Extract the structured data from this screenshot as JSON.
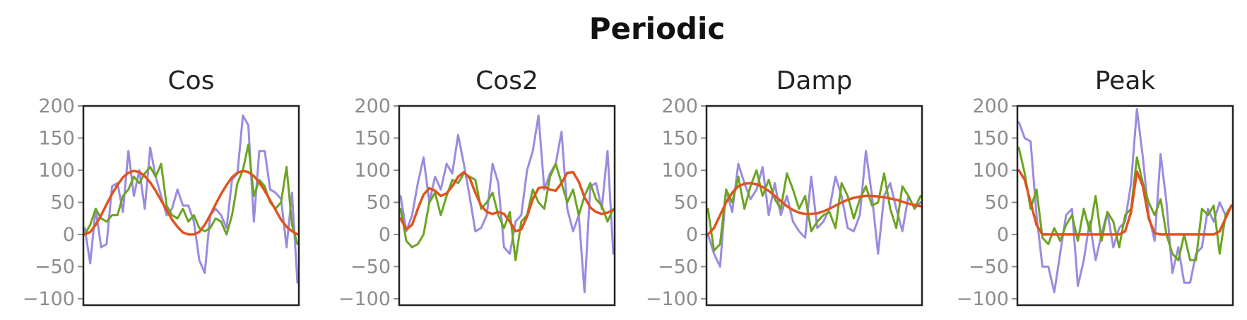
{
  "title": "Periodic",
  "colors": {
    "noisy_a": "#9b8ae0",
    "noisy_b": "#6aa51f",
    "fit": "#e0531f",
    "frame": "#222222",
    "tick": "#8c8c8c"
  },
  "chart_data": [
    {
      "type": "line",
      "title": "Cos",
      "xlabel": "",
      "ylabel": "",
      "ylim": [
        -110,
        200
      ],
      "yticks": [
        200,
        150,
        100,
        50,
        0,
        -50,
        -100
      ],
      "grid": false,
      "series": [
        {
          "color": "#9b8ae0",
          "values": [
            10,
            -45,
            40,
            -20,
            -15,
            75,
            80,
            35,
            130,
            60,
            100,
            40,
            135,
            90,
            60,
            30,
            40,
            70,
            45,
            45,
            20,
            -40,
            -60,
            30,
            40,
            30,
            10,
            85,
            95,
            185,
            170,
            20,
            130,
            130,
            70,
            65,
            55,
            -20,
            65,
            -75
          ]
        },
        {
          "color": "#6aa51f",
          "values": [
            0,
            15,
            40,
            25,
            20,
            30,
            30,
            60,
            70,
            90,
            80,
            95,
            105,
            90,
            110,
            45,
            30,
            25,
            40,
            20,
            30,
            10,
            5,
            10,
            25,
            20,
            0,
            30,
            80,
            100,
            140,
            60,
            85,
            75,
            50,
            40,
            50,
            105,
            15,
            -15
          ]
        },
        {
          "color": "#e0531f",
          "values": [
            0,
            4,
            15,
            30,
            47,
            63,
            77,
            89,
            96,
            99,
            97,
            91,
            81,
            68,
            53,
            38,
            23,
            12,
            3,
            0,
            0,
            4,
            15,
            30,
            47,
            63,
            77,
            89,
            96,
            99,
            97,
            91,
            81,
            68,
            53,
            38,
            23,
            12,
            5,
            0
          ]
        }
      ]
    },
    {
      "type": "line",
      "title": "Cos2",
      "xlabel": "",
      "ylabel": "",
      "ylim": [
        -110,
        200
      ],
      "yticks": [
        200,
        150,
        100,
        50,
        0,
        -50,
        -100
      ],
      "grid": false,
      "series": [
        {
          "color": "#9b8ae0",
          "values": [
            60,
            5,
            30,
            80,
            120,
            50,
            90,
            70,
            110,
            95,
            155,
            110,
            60,
            5,
            10,
            30,
            110,
            80,
            -20,
            -30,
            20,
            30,
            100,
            130,
            185,
            70,
            95,
            110,
            160,
            40,
            5,
            30,
            -90,
            75,
            80,
            40,
            130,
            -30
          ]
        },
        {
          "color": "#6aa51f",
          "values": [
            40,
            -10,
            -20,
            -15,
            0,
            50,
            65,
            30,
            60,
            85,
            80,
            95,
            90,
            85,
            40,
            50,
            65,
            30,
            10,
            35,
            -40,
            20,
            30,
            70,
            50,
            40,
            90,
            110,
            80,
            50,
            70,
            30,
            60,
            80,
            55,
            45,
            20,
            40
          ]
        },
        {
          "color": "#e0531f",
          "values": [
            25,
            8,
            15,
            40,
            62,
            72,
            68,
            60,
            64,
            75,
            90,
            97,
            88,
            65,
            45,
            35,
            32,
            35,
            32,
            20,
            5,
            8,
            28,
            55,
            72,
            74,
            70,
            68,
            80,
            96,
            97,
            82,
            58,
            42,
            35,
            32,
            34,
            38
          ]
        }
      ]
    },
    {
      "type": "line",
      "title": "Damp",
      "xlabel": "",
      "ylabel": "",
      "ylim": [
        -110,
        200
      ],
      "yticks": [
        200,
        150,
        100,
        50,
        0,
        -50,
        -100
      ],
      "grid": false,
      "series": [
        {
          "color": "#9b8ae0",
          "values": [
            0,
            -30,
            -50,
            70,
            35,
            110,
            80,
            55,
            70,
            105,
            30,
            80,
            30,
            60,
            20,
            5,
            -5,
            90,
            10,
            20,
            40,
            90,
            60,
            10,
            5,
            30,
            130,
            60,
            -30,
            60,
            80,
            40,
            5,
            60,
            40,
            50
          ]
        },
        {
          "color": "#6aa51f",
          "values": [
            40,
            -25,
            -15,
            70,
            50,
            90,
            40,
            75,
            100,
            60,
            85,
            55,
            40,
            95,
            70,
            40,
            60,
            5,
            20,
            30,
            35,
            10,
            80,
            60,
            25,
            55,
            75,
            45,
            50,
            95,
            40,
            10,
            75,
            60,
            40,
            60
          ]
        },
        {
          "color": "#e0531f",
          "values": [
            0,
            10,
            30,
            50,
            65,
            75,
            79,
            80,
            78,
            74,
            68,
            60,
            52,
            44,
            38,
            34,
            32,
            32,
            33,
            36,
            40,
            45,
            50,
            54,
            57,
            59,
            60,
            60,
            59,
            58,
            56,
            54,
            51,
            48,
            46,
            44
          ]
        }
      ]
    },
    {
      "type": "line",
      "title": "Peak",
      "xlabel": "",
      "ylabel": "",
      "ylim": [
        -110,
        200
      ],
      "yticks": [
        200,
        150,
        100,
        50,
        0,
        -50,
        -100
      ],
      "grid": false,
      "series": [
        {
          "color": "#9b8ae0",
          "values": [
            175,
            150,
            145,
            30,
            -50,
            -50,
            -90,
            -30,
            30,
            40,
            -80,
            -40,
            20,
            -40,
            0,
            35,
            -20,
            10,
            20,
            80,
            195,
            120,
            30,
            -10,
            125,
            50,
            -60,
            -20,
            -75,
            -75,
            -30,
            -20,
            40,
            20,
            50,
            30,
            45
          ]
        },
        {
          "color": "#6aa51f",
          "values": [
            135,
            95,
            40,
            70,
            -5,
            -15,
            10,
            -10,
            15,
            30,
            -10,
            40,
            5,
            60,
            -10,
            35,
            20,
            -20,
            30,
            40,
            120,
            80,
            50,
            30,
            55,
            0,
            -30,
            -40,
            0,
            -40,
            -40,
            40,
            30,
            45,
            -30,
            30,
            45
          ]
        },
        {
          "color": "#e0531f",
          "values": [
            100,
            85,
            50,
            15,
            0,
            0,
            0,
            0,
            0,
            0,
            0,
            0,
            0,
            0,
            0,
            0,
            0,
            0,
            5,
            35,
            98,
            75,
            25,
            2,
            0,
            0,
            0,
            0,
            0,
            0,
            0,
            0,
            0,
            0,
            5,
            25,
            45
          ]
        }
      ]
    }
  ]
}
